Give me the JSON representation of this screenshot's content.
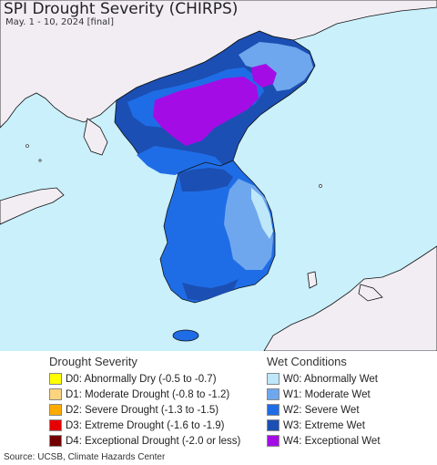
{
  "header": {
    "title": "SPI Drought Severity (CHIRPS)",
    "subtitle": "May. 1 - 10, 2024 [final]"
  },
  "colors": {
    "ocean": "#c9f0fb",
    "land_other": "#f1edf3",
    "w1": "#6fa7ee",
    "w2": "#1f6de6",
    "w3": "#1b4fb3",
    "w4": "#a40ce6"
  },
  "legend": {
    "drought": {
      "heading": "Drought Severity",
      "items": [
        {
          "code": "D0",
          "label": "D0: Abnormally Dry (-0.5 to -0.7)",
          "color": "#ffff00"
        },
        {
          "code": "D1",
          "label": "D1: Moderate Drought (-0.8 to -1.2)",
          "color": "#fcd37f"
        },
        {
          "code": "D2",
          "label": "D2: Severe Drought (-1.3 to -1.5)",
          "color": "#ffaa00"
        },
        {
          "code": "D3",
          "label": "D3: Extreme Drought (-1.6 to -1.9)",
          "color": "#e60000"
        },
        {
          "code": "D4",
          "label": "D4: Exceptional Drought (-2.0 or less)",
          "color": "#730000"
        }
      ]
    },
    "wet": {
      "heading": "Wet Conditions",
      "items": [
        {
          "code": "W0",
          "label": "W0: Abnormally Wet",
          "color": "#bee8fa"
        },
        {
          "code": "W1",
          "label": "W1: Moderate Wet",
          "color": "#6fa7ee"
        },
        {
          "code": "W2",
          "label": "W2: Severe Wet",
          "color": "#1f6de6"
        },
        {
          "code": "W3",
          "label": "W3: Extreme Wet",
          "color": "#1b4fb3"
        },
        {
          "code": "W4",
          "label": "W4: Exceptional Wet",
          "color": "#a40ce6"
        }
      ]
    }
  },
  "footer": {
    "source": "Source: UCSB, Climate Hazards Center"
  }
}
